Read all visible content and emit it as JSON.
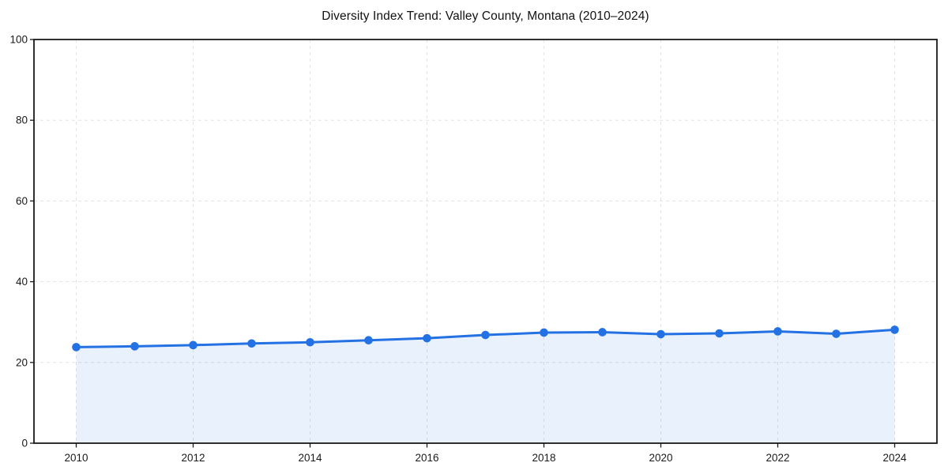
{
  "chart_data": {
    "type": "line",
    "title": "Diversity Index Trend: Valley County, Montana (2010–2024)",
    "x": [
      2010,
      2011,
      2012,
      2013,
      2014,
      2015,
      2016,
      2017,
      2018,
      2019,
      2020,
      2021,
      2022,
      2023,
      2024
    ],
    "series": [
      {
        "name": "Diversity Index",
        "values": [
          23.8,
          24.0,
          24.3,
          24.7,
          25.0,
          25.5,
          26.0,
          26.8,
          27.4,
          27.5,
          27.0,
          27.2,
          27.7,
          27.1,
          28.1
        ]
      }
    ],
    "xlabel": "",
    "ylabel": "",
    "ylim": [
      0,
      100
    ],
    "yticks": [
      0,
      20,
      40,
      60,
      80,
      100
    ],
    "xticks": [
      2010,
      2012,
      2014,
      2016,
      2018,
      2020,
      2022,
      2024
    ],
    "grid": true,
    "grid_style": "dashed",
    "legend": "none",
    "marker": "circle",
    "area_fill": true,
    "colors": {
      "line": "#2471e3",
      "marker": "#2471e3",
      "fill": "rgba(36, 113, 227, 0.10)",
      "grid": "#e4e4e4",
      "axis": "#1a1a1a",
      "text": "#1a1a1a",
      "background": "#ffffff"
    }
  }
}
